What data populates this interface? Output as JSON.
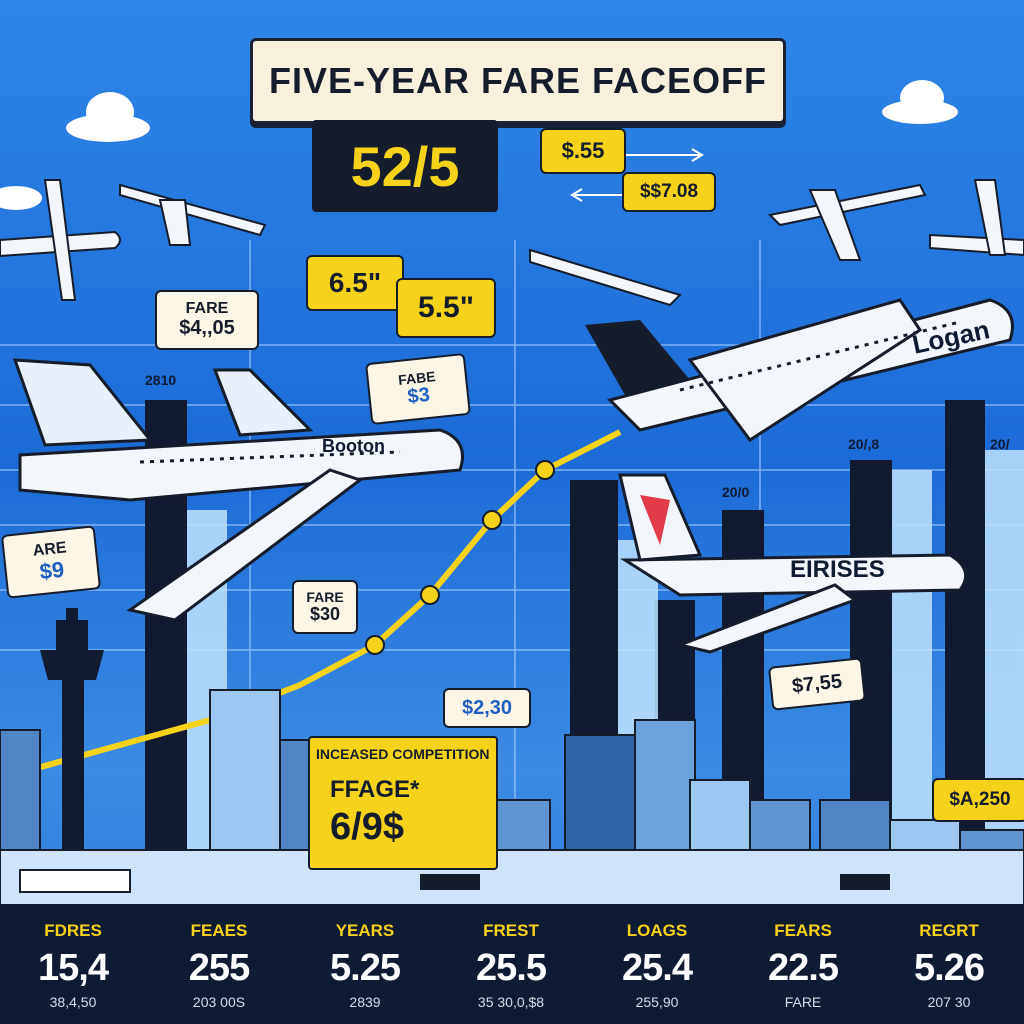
{
  "title": "FIVE-YEAR FARE FACEOFF",
  "headline_value": "52/5",
  "top_tags": {
    "a": "$.55",
    "b": "$$7.08"
  },
  "mid_tags": {
    "a": "6.5\"",
    "b": "5.5\""
  },
  "fare_tags": [
    {
      "label": "FARE",
      "value": "$4,,05"
    },
    {
      "label": "FABE",
      "value": "$3"
    },
    {
      "label": "ARE",
      "value": "$9"
    },
    {
      "label": "FARE",
      "value": "$30"
    }
  ],
  "price_tags": {
    "c": "$2,30",
    "d": "$7,55",
    "e": "$A,250"
  },
  "year_labels": {
    "a": "2810",
    "b": "20/0",
    "c": "20/,8",
    "d": "20/"
  },
  "competition": {
    "heading": "INCEASED COMPETITION",
    "label": "FFAGE*",
    "value": "6/9$"
  },
  "plane_labels": {
    "boston": "Booton",
    "logan": "Logan",
    "eirises": "EIRISES"
  },
  "stats": [
    {
      "label": "FDRES",
      "value": "15,4",
      "sub": "38,4,50"
    },
    {
      "label": "FEAES",
      "value": "255",
      "sub": "203 00S"
    },
    {
      "label": "YEARS",
      "value": "5.25",
      "sub": "2839"
    },
    {
      "label": "FREST",
      "value": "25.5",
      "sub": "35 30,0,$8"
    },
    {
      "label": "LOAGS",
      "value": "25.4",
      "sub": "255,90"
    },
    {
      "label": "FEARS",
      "value": "22.5",
      "sub": "FARE"
    },
    {
      "label": "REGRT",
      "value": "5.26",
      "sub": "207 30"
    }
  ],
  "colors": {
    "sky": "#1f6fd6",
    "accent": "#f7d21b",
    "dark": "#151c2b",
    "cream": "#fbf6e6"
  }
}
